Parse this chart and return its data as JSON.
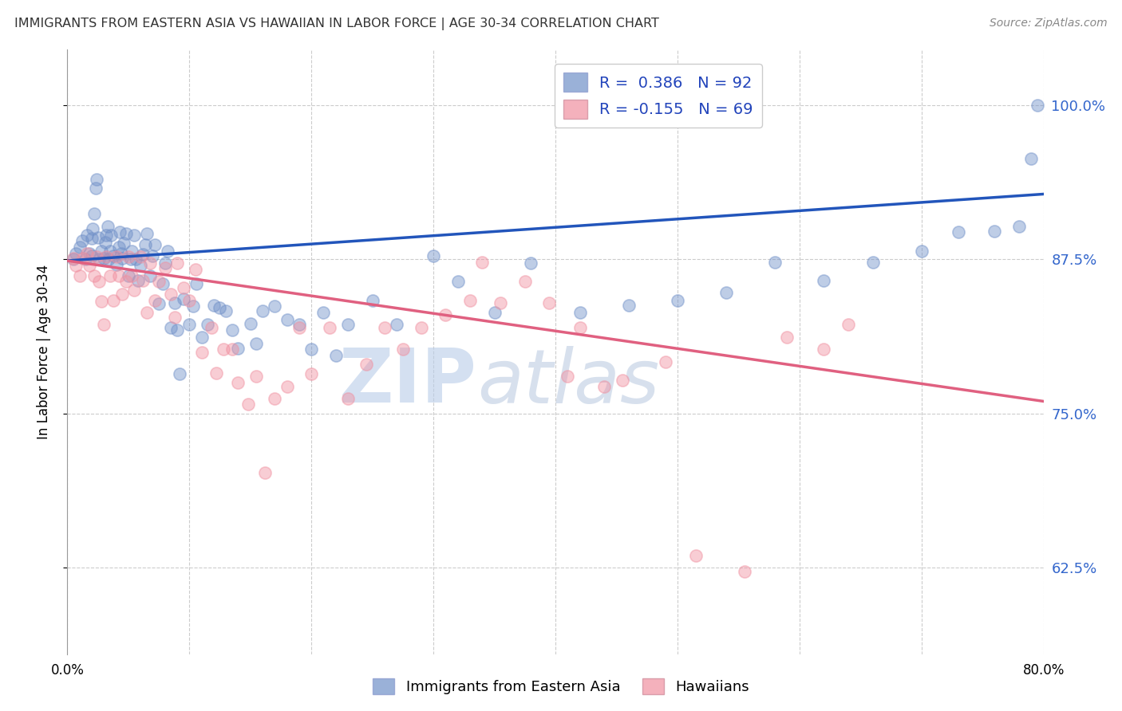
{
  "title": "IMMIGRANTS FROM EASTERN ASIA VS HAWAIIAN IN LABOR FORCE | AGE 30-34 CORRELATION CHART",
  "source": "Source: ZipAtlas.com",
  "ylabel_label": "In Labor Force | Age 30-34",
  "ylabel_ticks": [
    "62.5%",
    "75.0%",
    "87.5%",
    "100.0%"
  ],
  "xlim": [
    0.0,
    0.8
  ],
  "ylim": [
    0.555,
    1.045
  ],
  "ytick_positions": [
    0.625,
    0.75,
    0.875,
    1.0
  ],
  "xtick_positions": [
    0.0,
    0.1,
    0.2,
    0.3,
    0.4,
    0.5,
    0.6,
    0.7,
    0.8
  ],
  "blue_R": 0.386,
  "blue_N": 92,
  "pink_R": -0.155,
  "pink_N": 69,
  "blue_color": "#7090c8",
  "pink_color": "#f090a0",
  "blue_line_color": "#2255bb",
  "pink_line_color": "#e06080",
  "legend_label_blue": "Immigrants from Eastern Asia",
  "legend_label_pink": "Hawaiians",
  "watermark_zip": "ZIP",
  "watermark_atlas": "atlas",
  "blue_scatter_x": [
    0.005,
    0.007,
    0.01,
    0.012,
    0.015,
    0.016,
    0.018,
    0.02,
    0.02,
    0.021,
    0.022,
    0.023,
    0.024,
    0.025,
    0.026,
    0.028,
    0.03,
    0.031,
    0.032,
    0.033,
    0.034,
    0.035,
    0.036,
    0.038,
    0.04,
    0.042,
    0.043,
    0.044,
    0.045,
    0.046,
    0.048,
    0.05,
    0.052,
    0.053,
    0.055,
    0.056,
    0.058,
    0.06,
    0.062,
    0.064,
    0.065,
    0.068,
    0.07,
    0.072,
    0.075,
    0.078,
    0.08,
    0.082,
    0.085,
    0.088,
    0.09,
    0.092,
    0.095,
    0.1,
    0.103,
    0.106,
    0.11,
    0.115,
    0.12,
    0.125,
    0.13,
    0.135,
    0.14,
    0.15,
    0.155,
    0.16,
    0.17,
    0.18,
    0.19,
    0.2,
    0.21,
    0.22,
    0.23,
    0.25,
    0.27,
    0.3,
    0.32,
    0.35,
    0.38,
    0.42,
    0.46,
    0.5,
    0.54,
    0.58,
    0.62,
    0.66,
    0.7,
    0.73,
    0.76,
    0.78,
    0.79,
    0.795
  ],
  "blue_scatter_y": [
    0.875,
    0.88,
    0.885,
    0.89,
    0.875,
    0.895,
    0.88,
    0.878,
    0.892,
    0.9,
    0.912,
    0.933,
    0.94,
    0.893,
    0.875,
    0.882,
    0.876,
    0.889,
    0.895,
    0.902,
    0.875,
    0.882,
    0.895,
    0.878,
    0.871,
    0.885,
    0.897,
    0.88,
    0.876,
    0.888,
    0.896,
    0.862,
    0.875,
    0.882,
    0.895,
    0.875,
    0.858,
    0.87,
    0.879,
    0.887,
    0.896,
    0.862,
    0.878,
    0.887,
    0.839,
    0.855,
    0.872,
    0.882,
    0.82,
    0.84,
    0.818,
    0.782,
    0.843,
    0.822,
    0.837,
    0.855,
    0.812,
    0.822,
    0.838,
    0.836,
    0.833,
    0.818,
    0.803,
    0.823,
    0.807,
    0.833,
    0.837,
    0.826,
    0.822,
    0.802,
    0.832,
    0.797,
    0.822,
    0.842,
    0.822,
    0.878,
    0.857,
    0.832,
    0.872,
    0.832,
    0.838,
    0.842,
    0.848,
    0.873,
    0.858,
    0.873,
    0.882,
    0.897,
    0.898,
    0.902,
    0.957,
    1.0
  ],
  "pink_scatter_x": [
    0.005,
    0.007,
    0.01,
    0.013,
    0.016,
    0.018,
    0.022,
    0.024,
    0.026,
    0.028,
    0.03,
    0.032,
    0.035,
    0.038,
    0.04,
    0.042,
    0.045,
    0.048,
    0.05,
    0.053,
    0.055,
    0.06,
    0.062,
    0.065,
    0.068,
    0.072,
    0.075,
    0.08,
    0.085,
    0.088,
    0.09,
    0.095,
    0.1,
    0.105,
    0.11,
    0.118,
    0.122,
    0.128,
    0.135,
    0.14,
    0.148,
    0.155,
    0.162,
    0.17,
    0.18,
    0.19,
    0.2,
    0.215,
    0.23,
    0.245,
    0.26,
    0.275,
    0.29,
    0.31,
    0.33,
    0.34,
    0.355,
    0.375,
    0.395,
    0.41,
    0.42,
    0.44,
    0.455,
    0.49,
    0.515,
    0.555,
    0.59,
    0.62,
    0.64
  ],
  "pink_scatter_y": [
    0.876,
    0.87,
    0.862,
    0.876,
    0.88,
    0.87,
    0.862,
    0.877,
    0.857,
    0.841,
    0.822,
    0.877,
    0.862,
    0.842,
    0.877,
    0.862,
    0.847,
    0.857,
    0.877,
    0.862,
    0.85,
    0.877,
    0.858,
    0.832,
    0.872,
    0.842,
    0.857,
    0.868,
    0.847,
    0.828,
    0.872,
    0.852,
    0.842,
    0.867,
    0.8,
    0.82,
    0.783,
    0.802,
    0.802,
    0.775,
    0.758,
    0.78,
    0.702,
    0.762,
    0.772,
    0.82,
    0.782,
    0.82,
    0.762,
    0.79,
    0.82,
    0.802,
    0.82,
    0.83,
    0.842,
    0.873,
    0.84,
    0.857,
    0.84,
    0.78,
    0.82,
    0.772,
    0.777,
    0.792,
    0.635,
    0.622,
    0.812,
    0.802,
    0.822
  ],
  "blue_trend_x": [
    0.0,
    0.8
  ],
  "blue_trend_y": [
    0.874,
    0.928
  ],
  "pink_trend_x": [
    0.0,
    0.8
  ],
  "pink_trend_y": [
    0.874,
    0.76
  ]
}
